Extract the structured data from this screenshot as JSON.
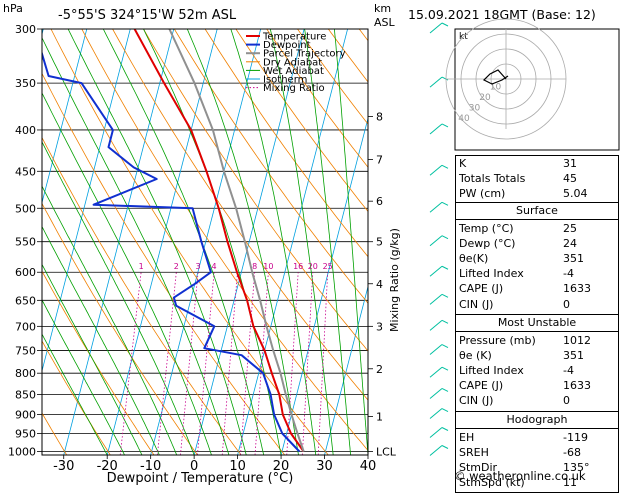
{
  "header": {
    "pres_unit": "hPa",
    "location": "-5°55'S  324°15'W  52m  ASL",
    "alt_unit_line1": "km",
    "alt_unit_line2": "ASL",
    "datetime": "15.09.2021  18GMT  (Base: 12)"
  },
  "chart_data": {
    "type": "skew-t log-p",
    "xlabel": "Dewpoint / Temperature (°C)",
    "ylabel": "hPa",
    "right_axis_label": "Mixing Ratio (g/kg)",
    "pressure_levels": [
      300,
      350,
      400,
      450,
      500,
      550,
      600,
      650,
      700,
      750,
      800,
      850,
      900,
      950,
      1000
    ],
    "pressure_range": [
      300,
      1010
    ],
    "temperature_ticks": [
      -30,
      -20,
      -10,
      0,
      10,
      20,
      30,
      40
    ],
    "temperature_range": [
      -35,
      40
    ],
    "skew_c_per_decade": 48,
    "km_ticks": [
      {
        "p": 1000,
        "label": "LCL"
      },
      {
        "p": 905,
        "label": "1"
      },
      {
        "p": 790,
        "label": "2"
      },
      {
        "p": 700,
        "label": "3"
      },
      {
        "p": 620,
        "label": "4"
      },
      {
        "p": 550,
        "label": "5"
      },
      {
        "p": 490,
        "label": "6"
      },
      {
        "p": 435,
        "label": "7"
      },
      {
        "p": 385,
        "label": "8"
      }
    ],
    "mixing_ratio_values": [
      1,
      2,
      3,
      4,
      6,
      8,
      10,
      16,
      20,
      25
    ],
    "mixing_ratio_labels": [
      "1",
      "2",
      "3",
      "4",
      "8",
      "10",
      "16",
      "20",
      "25"
    ],
    "legend": [
      "Temperature",
      "Dewpoint",
      "Parcel Trajectory",
      "Dry Adiabat",
      "Wet Adiabat",
      "Isotherm",
      "Mixing Ratio"
    ],
    "series": [
      {
        "name": "Temperature",
        "color": "#e00000",
        "points": [
          [
            1000,
            25
          ],
          [
            950,
            21
          ],
          [
            900,
            18
          ],
          [
            850,
            16
          ],
          [
            800,
            13
          ],
          [
            750,
            10
          ],
          [
            700,
            6
          ],
          [
            650,
            3
          ],
          [
            600,
            -1
          ],
          [
            550,
            -5
          ],
          [
            500,
            -9
          ],
          [
            450,
            -14
          ],
          [
            400,
            -20
          ],
          [
            350,
            -29
          ],
          [
            300,
            -39
          ]
        ]
      },
      {
        "name": "Dewpoint",
        "color": "#1030d0",
        "points": [
          [
            1000,
            24
          ],
          [
            950,
            19
          ],
          [
            900,
            16
          ],
          [
            850,
            14
          ],
          [
            800,
            11
          ],
          [
            760,
            5
          ],
          [
            745,
            -4
          ],
          [
            700,
            -3
          ],
          [
            660,
            -13
          ],
          [
            645,
            -14
          ],
          [
            620,
            -10
          ],
          [
            600,
            -7
          ],
          [
            550,
            -11
          ],
          [
            500,
            -15
          ],
          [
            495,
            -38
          ],
          [
            460,
            -25
          ],
          [
            445,
            -31
          ],
          [
            420,
            -38
          ],
          [
            400,
            -38
          ],
          [
            350,
            -48
          ],
          [
            343,
            -56
          ],
          [
            300,
            -62
          ]
        ]
      },
      {
        "name": "Parcel Trajectory",
        "color": "#909090",
        "points": [
          [
            1000,
            25
          ],
          [
            950,
            22.5
          ],
          [
            900,
            20
          ],
          [
            850,
            17.5
          ],
          [
            800,
            15
          ],
          [
            750,
            12
          ],
          [
            700,
            9
          ],
          [
            650,
            6
          ],
          [
            600,
            2.5
          ],
          [
            550,
            -1
          ],
          [
            500,
            -5
          ],
          [
            450,
            -10
          ],
          [
            400,
            -15
          ],
          [
            350,
            -22
          ],
          [
            300,
            -31
          ]
        ]
      }
    ]
  },
  "hodograph": {
    "label": "kt",
    "ring_labels": [
      "40",
      "30",
      "20",
      "10"
    ]
  },
  "indices": [
    {
      "label": "K",
      "value": "31"
    },
    {
      "label": "Totals Totals",
      "value": "45"
    },
    {
      "label": "PW (cm)",
      "value": "5.04"
    }
  ],
  "surface": {
    "title": "Surface",
    "rows": [
      {
        "label": "Temp (°C)",
        "value": "25"
      },
      {
        "label": "Dewp (°C)",
        "value": "24"
      },
      {
        "label": "θe(K)",
        "value": "351"
      },
      {
        "label": "Lifted Index",
        "value": "-4"
      },
      {
        "label": "CAPE (J)",
        "value": "1633"
      },
      {
        "label": "CIN (J)",
        "value": "0"
      }
    ]
  },
  "most_unstable": {
    "title": "Most Unstable",
    "rows": [
      {
        "label": "Pressure (mb)",
        "value": "1012"
      },
      {
        "label": "θe (K)",
        "value": "351"
      },
      {
        "label": "Lifted Index",
        "value": "-4"
      },
      {
        "label": "CAPE (J)",
        "value": "1633"
      },
      {
        "label": "CIN (J)",
        "value": "0"
      }
    ]
  },
  "hodo_table": {
    "title": "Hodograph",
    "rows": [
      {
        "label": "EH",
        "value": "-119"
      },
      {
        "label": "SREH",
        "value": "-68"
      },
      {
        "label": "StmDir",
        "value": "135°"
      },
      {
        "label": "StmSpd (kt)",
        "value": "11"
      }
    ]
  },
  "credit": "© weatheronline.co.uk",
  "colors": {
    "temperature": "#e00000",
    "dewpoint": "#1030d0",
    "parcel": "#909090",
    "dry_adiabat": "#f08000",
    "wet_adiabat": "#00a000",
    "isotherm": "#00a0e0",
    "mixing_ratio": "#c8008c",
    "wind_barb": "#00c0a0"
  }
}
